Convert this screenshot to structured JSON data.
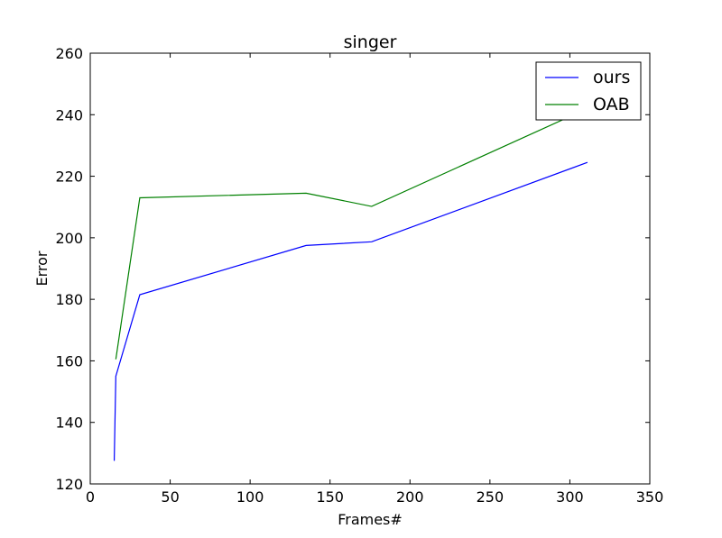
{
  "chart_data": {
    "type": "line",
    "title": "singer",
    "xlabel": "Frames#",
    "ylabel": "Error",
    "xlim": [
      0,
      350
    ],
    "ylim": [
      120,
      260
    ],
    "xticks": [
      "0",
      "50",
      "100",
      "150",
      "200",
      "250",
      "300",
      "350"
    ],
    "yticks": [
      "120",
      "140",
      "160",
      "180",
      "200",
      "220",
      "240",
      "260"
    ],
    "grid": false,
    "legend_position": "top-right",
    "series": [
      {
        "name": "ours",
        "color": "#0000ff",
        "x": [
          15,
          16,
          31,
          135,
          176,
          311
        ],
        "y": [
          127.5,
          155,
          181.5,
          197.5,
          198.7,
          224.5
        ]
      },
      {
        "name": "OAB",
        "color": "#008000",
        "x": [
          16,
          31,
          135,
          176,
          311
        ],
        "y": [
          160.5,
          213,
          214.5,
          210.2,
          242
        ]
      }
    ]
  }
}
